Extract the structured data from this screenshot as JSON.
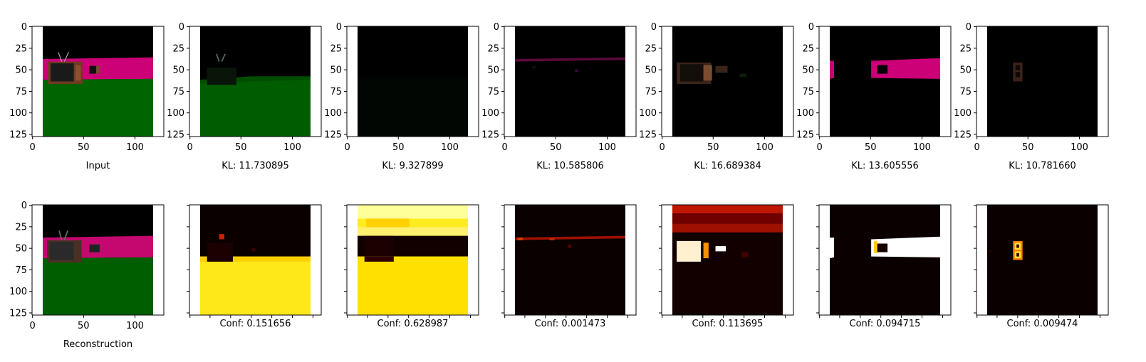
{
  "figure": {
    "top_row": [
      {
        "caption": "Input"
      },
      {
        "caption": "KL: 11.730895"
      },
      {
        "caption": "KL: 9.327899"
      },
      {
        "caption": "KL: 10.585806"
      },
      {
        "caption": "KL: 16.689384"
      },
      {
        "caption": "KL: 13.605556"
      },
      {
        "caption": "KL: 10.781660"
      }
    ],
    "bottom_row": [
      {
        "caption": "Reconstruction"
      },
      {
        "caption": "Conf: 0.151656"
      },
      {
        "caption": "Conf: 0.628987"
      },
      {
        "caption": "Conf: 0.001473"
      },
      {
        "caption": "Conf: 0.113695"
      },
      {
        "caption": "Conf: 0.094715"
      },
      {
        "caption": "Conf: 0.009474"
      }
    ]
  },
  "chart_data": [
    {
      "type": "heatmap",
      "layout": "2x7 image grid",
      "image_extent": {
        "xlim": [
          0,
          128
        ],
        "ylim": [
          128,
          0
        ]
      },
      "x_ticks": [
        0,
        50,
        100
      ],
      "y_ticks": [
        0,
        25,
        50,
        75,
        100,
        125
      ],
      "top_row_captions": [
        "Input",
        "KL: 11.730895",
        "KL: 9.327899",
        "KL: 10.585806",
        "KL: 16.689384",
        "KL: 13.605556",
        "KL: 10.781660"
      ],
      "kl_values": [
        11.730895,
        9.327899,
        10.585806,
        16.689384,
        13.605556,
        10.78166
      ],
      "bottom_row_captions": [
        "Reconstruction",
        "Conf: 0.151656",
        "Conf: 0.628987",
        "Conf: 0.001473",
        "Conf: 0.113695",
        "Conf: 0.094715",
        "Conf: 0.009474"
      ],
      "conf_values": [
        0.151656,
        0.628987,
        0.001473,
        0.113695,
        0.094715,
        0.009474
      ],
      "colormap_conf": "hot",
      "grid": false
    }
  ]
}
